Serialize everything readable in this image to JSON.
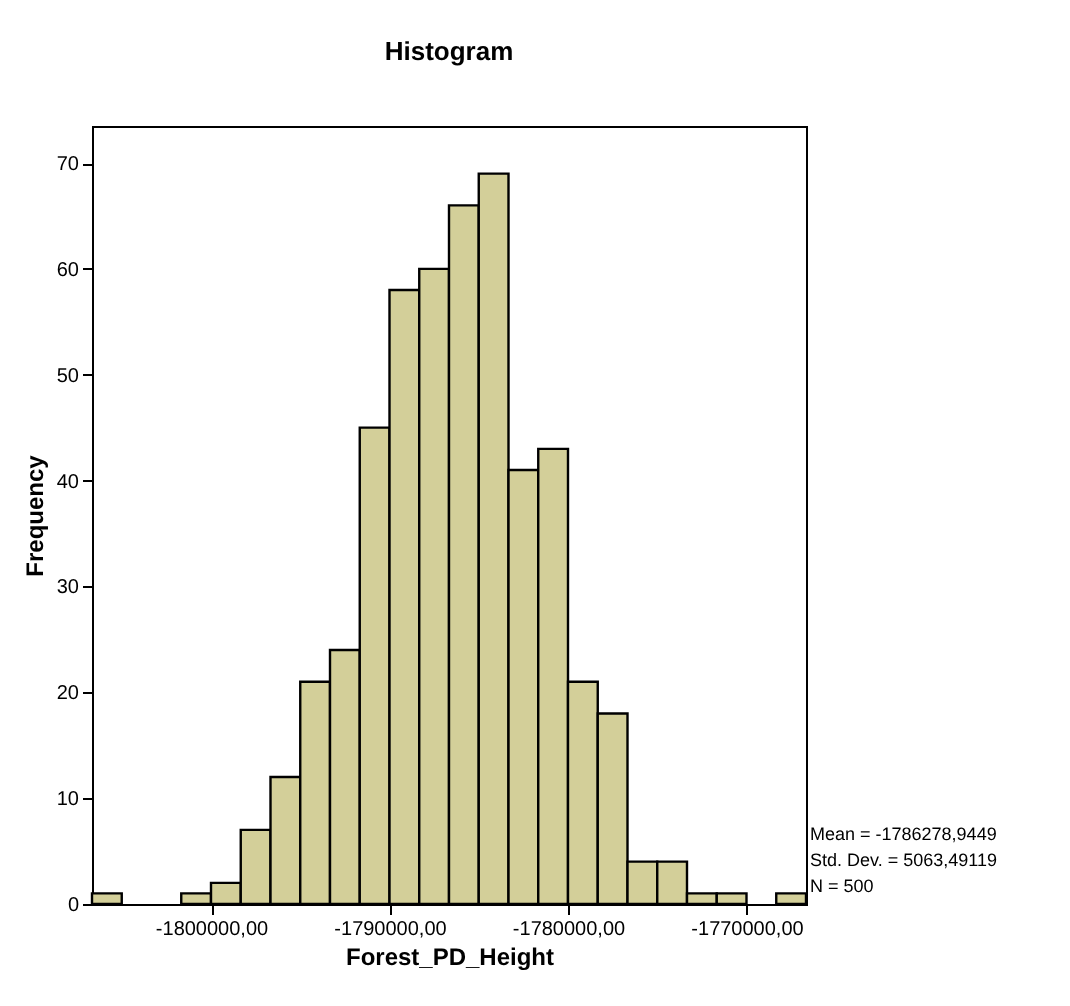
{
  "chart_data": {
    "type": "histogram",
    "title": "Histogram",
    "xlabel": "Forest_PD_Height",
    "ylabel": "Frequency",
    "bins": [
      -1806666.67,
      -1805000,
      -1803333.33,
      -1801666.67,
      -1800000,
      -1798333.33,
      -1796666.67,
      -1795000,
      -1793333.33,
      -1791666.67,
      -1790000,
      -1788333.33,
      -1786666.67,
      -1785000,
      -1783333.33,
      -1781666.67,
      -1780000,
      -1778333.33,
      -1776666.67,
      -1775000,
      -1773333.33,
      -1771666.67,
      -1770000,
      -1768333.33,
      -1766666.67
    ],
    "values": [
      1,
      0,
      0,
      1,
      2,
      7,
      12,
      21,
      24,
      45,
      58,
      60,
      66,
      69,
      41,
      43,
      21,
      18,
      4,
      4,
      1,
      1,
      0,
      1
    ],
    "color": "#d3cf99",
    "xlim": [
      -1806666.67,
      -1766666.67
    ],
    "xticks": [
      {
        "value": -1800000,
        "label": "-1800000,00"
      },
      {
        "value": -1790000,
        "label": "-1790000,00"
      },
      {
        "value": -1780000,
        "label": "-1780000,00"
      },
      {
        "value": -1770000,
        "label": "-1770000,00"
      }
    ],
    "ylim": [
      0,
      73.5
    ],
    "yticks": [
      0,
      10,
      20,
      30,
      40,
      50,
      60,
      70
    ],
    "grid": false,
    "annotations": [
      "Mean = -1786278,9449",
      "Std. Dev. = 5063,49119",
      "N = 500"
    ]
  }
}
